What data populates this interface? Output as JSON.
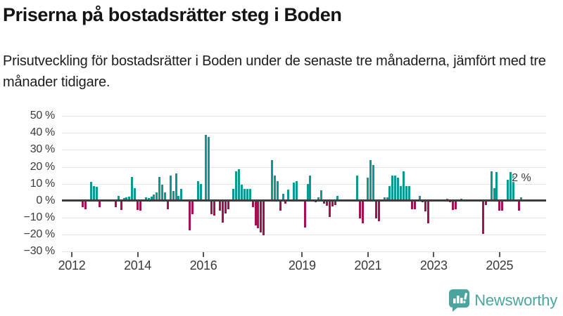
{
  "header": {
    "title": "Priserna på bostadsrätter steg i Boden",
    "subtitle": "Prisutveckling för bostadsrätter i Boden under de senaste tre månaderna, jämfört med tre månader tidigare."
  },
  "chart_data": {
    "type": "bar",
    "title": "Priserna på bostadsrätter steg i Boden",
    "subtitle": "Prisutveckling för bostadsrätter i Boden under de senaste tre månaderna, jämfört med tre månader tidigare.",
    "unit": "%",
    "ylim": [
      -30,
      50
    ],
    "grid": true,
    "positive_color": "#0a9a8f",
    "negative_color": "#a31150",
    "axis_color": "#3d3d3d",
    "yticks": [
      {
        "value": 50,
        "label": "50 %"
      },
      {
        "value": 40,
        "label": "40 %"
      },
      {
        "value": 30,
        "label": "30 %"
      },
      {
        "value": 20,
        "label": "20 %"
      },
      {
        "value": 10,
        "label": "10 %"
      },
      {
        "value": 0,
        "label": "0 %"
      },
      {
        "value": -10,
        "label": "−10 %"
      },
      {
        "value": -20,
        "label": "−20 %"
      },
      {
        "value": -30,
        "label": "−30 %"
      }
    ],
    "xticks": [
      {
        "year": 2012,
        "label": "2012"
      },
      {
        "year": 2014,
        "label": "2014"
      },
      {
        "year": 2016,
        "label": "2016"
      },
      {
        "year": 2019,
        "label": "2019"
      },
      {
        "year": 2021,
        "label": "2021"
      },
      {
        "year": 2023,
        "label": "2023"
      },
      {
        "year": 2025,
        "label": "2025"
      }
    ],
    "annotation": {
      "text": "2 %",
      "month": "2025-09",
      "value": 2
    },
    "series": [
      {
        "month": "2012-05",
        "value": -4
      },
      {
        "month": "2012-06",
        "value": -5
      },
      {
        "month": "2012-08",
        "value": 11
      },
      {
        "month": "2012-09",
        "value": 8.5
      },
      {
        "month": "2012-10",
        "value": 8
      },
      {
        "month": "2012-11",
        "value": -4
      },
      {
        "month": "2013-05",
        "value": -4
      },
      {
        "month": "2013-06",
        "value": 3
      },
      {
        "month": "2013-07",
        "value": -5.5
      },
      {
        "month": "2013-08",
        "value": 1.5
      },
      {
        "month": "2013-09",
        "value": 2
      },
      {
        "month": "2013-10",
        "value": 2.5
      },
      {
        "month": "2013-11",
        "value": 14
      },
      {
        "month": "2013-12",
        "value": 7.5
      },
      {
        "month": "2014-01",
        "value": -5.5
      },
      {
        "month": "2014-02",
        "value": -6
      },
      {
        "month": "2014-04",
        "value": 2
      },
      {
        "month": "2014-05",
        "value": 1.6
      },
      {
        "month": "2014-06",
        "value": 2.3
      },
      {
        "month": "2014-07",
        "value": 3.5
      },
      {
        "month": "2014-08",
        "value": 5
      },
      {
        "month": "2014-09",
        "value": 14
      },
      {
        "month": "2014-10",
        "value": 9.5
      },
      {
        "month": "2014-11",
        "value": 5
      },
      {
        "month": "2014-12",
        "value": -5
      },
      {
        "month": "2015-01",
        "value": 15
      },
      {
        "month": "2015-02",
        "value": 5.5
      },
      {
        "month": "2015-03",
        "value": 16
      },
      {
        "month": "2015-04",
        "value": 3
      },
      {
        "month": "2015-05",
        "value": 7
      },
      {
        "month": "2015-08",
        "value": -17.5
      },
      {
        "month": "2015-09",
        "value": -8
      },
      {
        "month": "2015-11",
        "value": 11.5
      },
      {
        "month": "2015-12",
        "value": 10
      },
      {
        "month": "2016-02",
        "value": 39
      },
      {
        "month": "2016-03",
        "value": 37.5
      },
      {
        "month": "2016-04",
        "value": -8
      },
      {
        "month": "2016-05",
        "value": -9
      },
      {
        "month": "2016-07",
        "value": -6
      },
      {
        "month": "2016-08",
        "value": -13
      },
      {
        "month": "2016-09",
        "value": -7.5
      },
      {
        "month": "2016-10",
        "value": -5
      },
      {
        "month": "2016-12",
        "value": 7
      },
      {
        "month": "2017-01",
        "value": 17.5
      },
      {
        "month": "2017-02",
        "value": 18.5
      },
      {
        "month": "2017-03",
        "value": 9.5
      },
      {
        "month": "2017-04",
        "value": 7
      },
      {
        "month": "2017-05",
        "value": 7
      },
      {
        "month": "2017-06",
        "value": 7
      },
      {
        "month": "2017-07",
        "value": -4
      },
      {
        "month": "2017-08",
        "value": -14.5
      },
      {
        "month": "2017-09",
        "value": -16.5
      },
      {
        "month": "2017-10",
        "value": -19
      },
      {
        "month": "2017-11",
        "value": -20.5
      },
      {
        "month": "2018-02",
        "value": 24
      },
      {
        "month": "2018-03",
        "value": 15
      },
      {
        "month": "2018-04",
        "value": 11.5
      },
      {
        "month": "2018-05",
        "value": -6
      },
      {
        "month": "2018-06",
        "value": 4
      },
      {
        "month": "2018-07",
        "value": -2
      },
      {
        "month": "2018-08",
        "value": 6.5
      },
      {
        "month": "2018-10",
        "value": 10.5
      },
      {
        "month": "2018-11",
        "value": 11.5
      },
      {
        "month": "2019-02",
        "value": -16
      },
      {
        "month": "2019-03",
        "value": 10
      },
      {
        "month": "2019-04",
        "value": 15
      },
      {
        "month": "2019-06",
        "value": -1
      },
      {
        "month": "2019-07",
        "value": 2
      },
      {
        "month": "2019-08",
        "value": 6
      },
      {
        "month": "2019-09",
        "value": -2
      },
      {
        "month": "2019-10",
        "value": -3
      },
      {
        "month": "2019-11",
        "value": -9.5
      },
      {
        "month": "2019-12",
        "value": -3.5
      },
      {
        "month": "2020-01",
        "value": -2.5
      },
      {
        "month": "2020-02",
        "value": 3
      },
      {
        "month": "2020-09",
        "value": 15
      },
      {
        "month": "2020-10",
        "value": -10.5
      },
      {
        "month": "2020-11",
        "value": -13.5
      },
      {
        "month": "2021-01",
        "value": 13.5
      },
      {
        "month": "2021-02",
        "value": 24
      },
      {
        "month": "2021-03",
        "value": 21
      },
      {
        "month": "2021-04",
        "value": -10.5
      },
      {
        "month": "2021-05",
        "value": -12
      },
      {
        "month": "2021-07",
        "value": 2
      },
      {
        "month": "2021-08",
        "value": 2
      },
      {
        "month": "2021-09",
        "value": 8.5
      },
      {
        "month": "2021-10",
        "value": 15
      },
      {
        "month": "2021-11",
        "value": 15
      },
      {
        "month": "2021-12",
        "value": 13.5
      },
      {
        "month": "2022-01",
        "value": 8.5
      },
      {
        "month": "2022-02",
        "value": 17.5
      },
      {
        "month": "2022-03",
        "value": 8.5
      },
      {
        "month": "2022-04",
        "value": 8.5
      },
      {
        "month": "2022-05",
        "value": -5
      },
      {
        "month": "2022-06",
        "value": -5
      },
      {
        "month": "2022-08",
        "value": 3
      },
      {
        "month": "2022-09",
        "value": -1
      },
      {
        "month": "2022-10",
        "value": -6.5
      },
      {
        "month": "2022-11",
        "value": -13.5
      },
      {
        "month": "2023-06",
        "value": 1
      },
      {
        "month": "2023-07",
        "value": -1
      },
      {
        "month": "2023-08",
        "value": -5.5
      },
      {
        "month": "2023-09",
        "value": -5
      },
      {
        "month": "2023-11",
        "value": 1
      },
      {
        "month": "2024-07",
        "value": -19.5
      },
      {
        "month": "2024-08",
        "value": -2.5
      },
      {
        "month": "2024-10",
        "value": 17.5
      },
      {
        "month": "2024-11",
        "value": 7.5
      },
      {
        "month": "2024-12",
        "value": 17
      },
      {
        "month": "2025-01",
        "value": -6
      },
      {
        "month": "2025-02",
        "value": -6
      },
      {
        "month": "2025-04",
        "value": 12.5
      },
      {
        "month": "2025-05",
        "value": 17
      },
      {
        "month": "2025-06",
        "value": 15
      },
      {
        "month": "2025-08",
        "value": -6
      },
      {
        "month": "2025-09",
        "value": 2
      }
    ]
  },
  "branding": {
    "logo_text": "Newsworthy",
    "logo_color": "#4ba59e",
    "logo_icon": "bar-chart-speech-bubble-icon"
  }
}
